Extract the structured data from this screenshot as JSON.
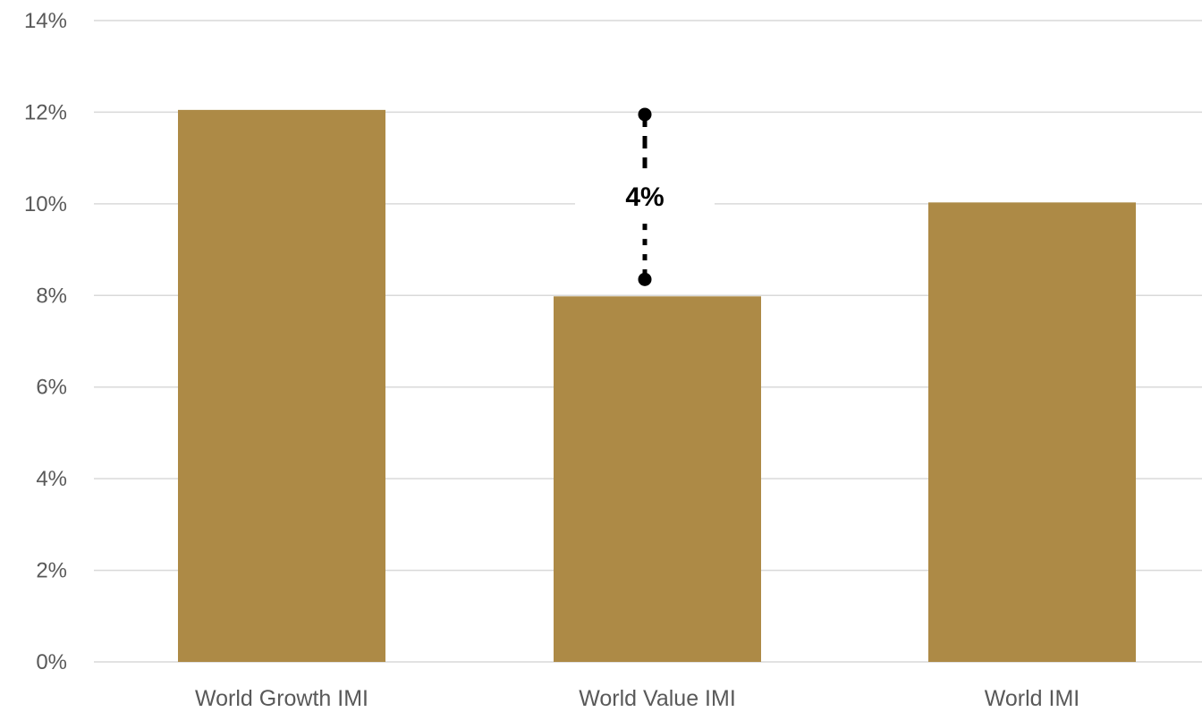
{
  "chart_data": {
    "type": "bar",
    "categories": [
      "World Growth IMI",
      "World Value IMI",
      "World IMI"
    ],
    "series": [
      {
        "values": [
          12.05,
          7.98,
          10.03
        ]
      }
    ],
    "y_ticks": [
      "0%",
      "2%",
      "4%",
      "6%",
      "8%",
      "10%",
      "12%",
      "14%"
    ],
    "ylim": [
      0,
      14
    ],
    "y_unit": "%",
    "grid": true,
    "legend": "none",
    "bar_color": "#ad8a46",
    "annotation": {
      "label": "4%",
      "category": "World Value IMI",
      "from_value": 11.95,
      "to_value": 8.35,
      "style": "dashed-bracket"
    }
  }
}
